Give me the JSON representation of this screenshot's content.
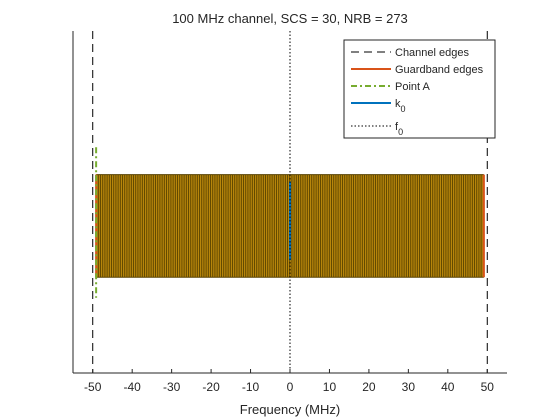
{
  "chart_data": {
    "type": "line",
    "title": "100 MHz channel, SCS = 30, NRB = 273",
    "xlabel": "Frequency (MHz)",
    "ylabel": "",
    "xlim": [
      -55,
      55
    ],
    "ylim": [
      0,
      1
    ],
    "xticks": [
      -50,
      -40,
      -30,
      -20,
      -10,
      0,
      10,
      20,
      30,
      40,
      50
    ],
    "xtick_labels": [
      "-50",
      "-40",
      "-30",
      "-20",
      "-10",
      "0",
      "10",
      "20",
      "30",
      "40",
      "50"
    ],
    "y_ticks_visible": false,
    "grid": false,
    "legend_position": "top-right",
    "resource_grid": {
      "x_range": [
        -49.14,
        49.14
      ],
      "y_range": [
        0.28,
        0.58
      ],
      "line_color": "#5a4300",
      "fill_color": "#b8860b"
    },
    "series": [
      {
        "name": "Channel edges",
        "style": "dashed",
        "color": "#000000",
        "x": [
          -50,
          50
        ],
        "y_range": [
          0,
          1
        ]
      },
      {
        "name": "Guardband edges",
        "style": "solid",
        "color": "#d95319",
        "x": [
          -49.14,
          49.14
        ],
        "y_range": [
          0.28,
          0.58
        ]
      },
      {
        "name": "Point A",
        "style": "dash-dot",
        "color": "#77ac30",
        "x": [
          -49.14
        ],
        "y_range": [
          0.22,
          0.66
        ]
      },
      {
        "name": "k_0",
        "style": "solid",
        "color": "#0072bd",
        "x": [
          0
        ],
        "y_range": [
          0.33,
          0.56
        ]
      },
      {
        "name": "f_0",
        "style": "dotted",
        "color": "#000000",
        "x": [
          0
        ],
        "y_range": [
          0,
          1
        ]
      }
    ],
    "legend": [
      {
        "label": "Channel edges",
        "subscript": ""
      },
      {
        "label": "Guardband edges",
        "subscript": ""
      },
      {
        "label": "Point A",
        "subscript": ""
      },
      {
        "label": "k",
        "subscript": "0"
      },
      {
        "label": "f",
        "subscript": "0"
      }
    ]
  }
}
